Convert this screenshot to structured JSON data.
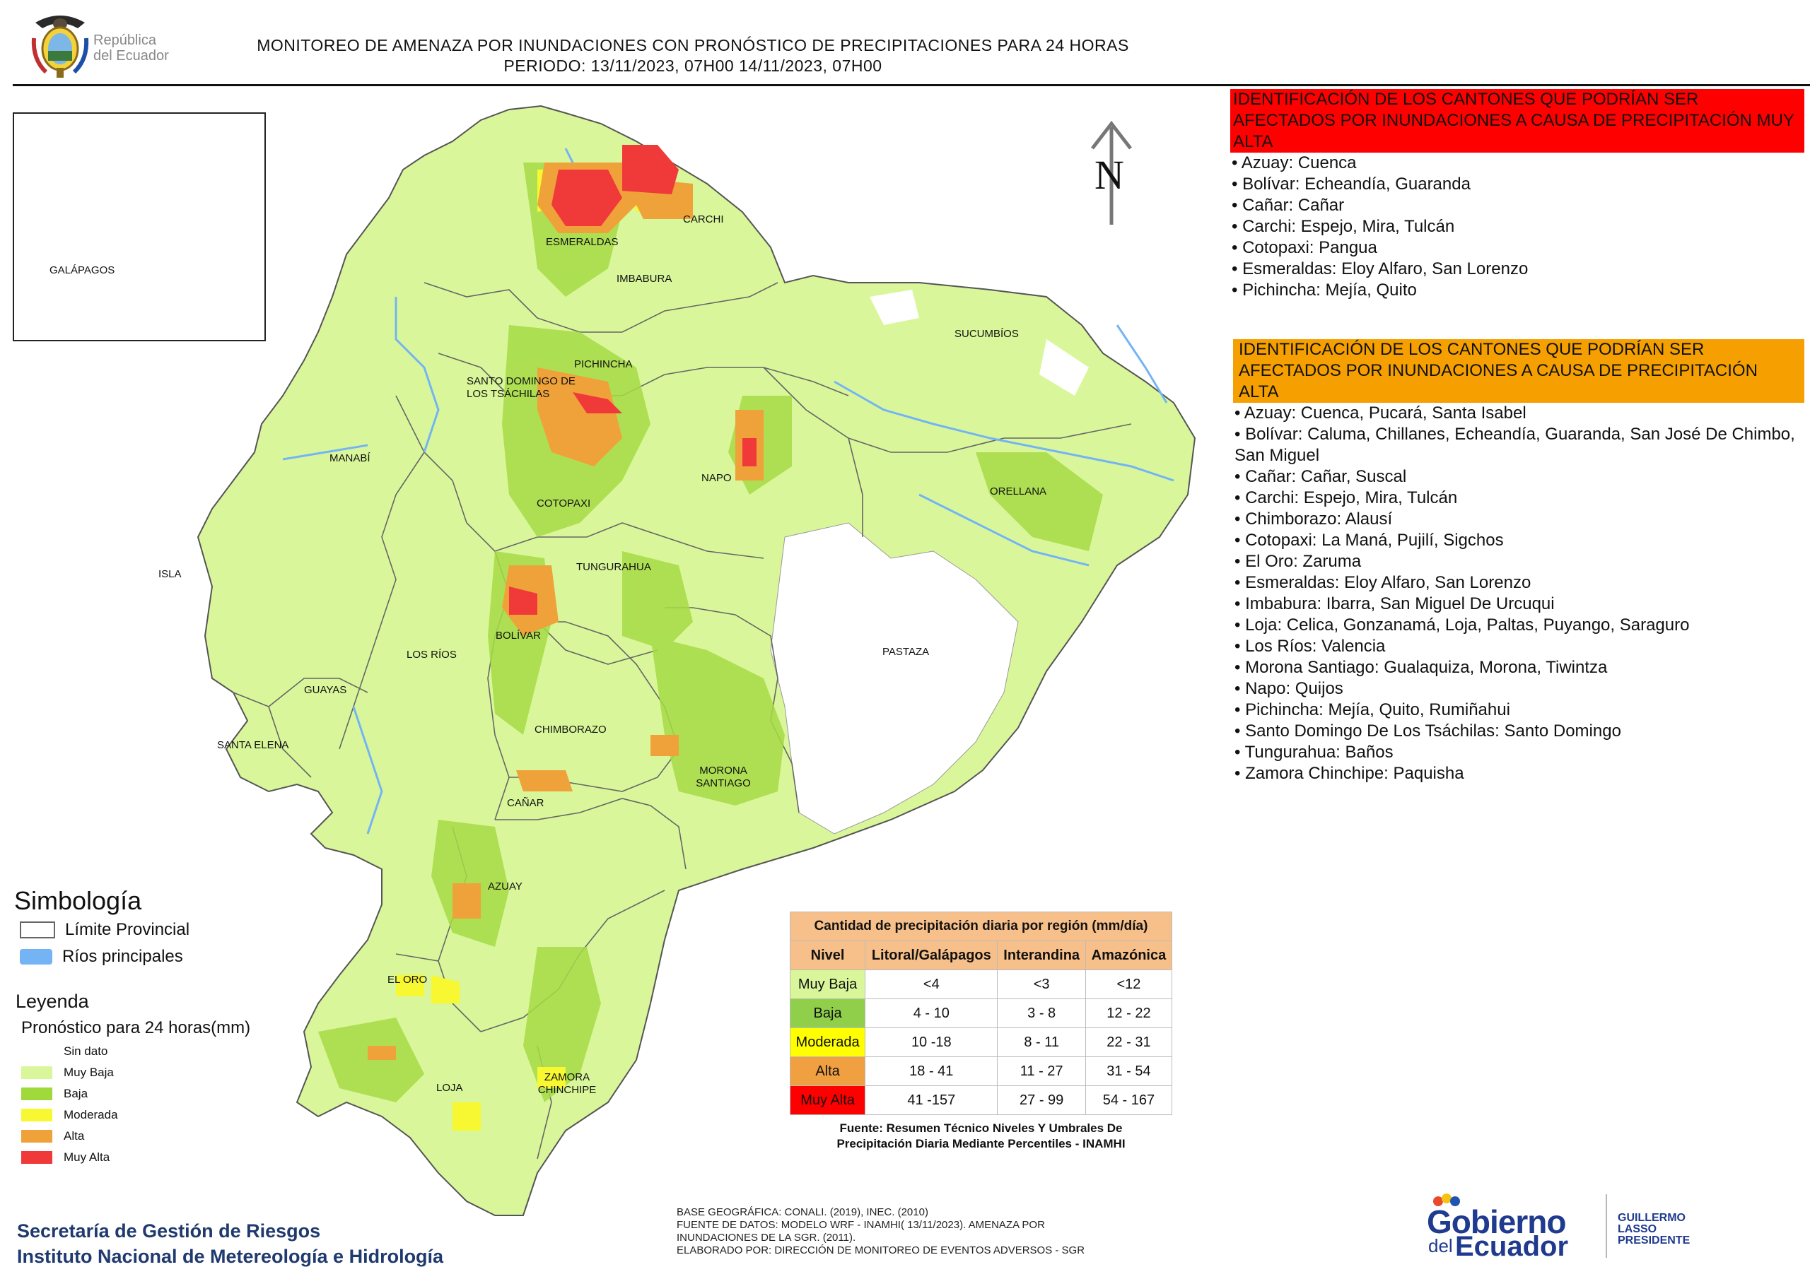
{
  "header": {
    "logo_text": [
      "República",
      "del Ecuador"
    ],
    "title_line1": "MONITOREO DE AMENAZA POR INUNDACIONES  CON PRONÓSTICO DE  PRECIPITACIONES PARA 24 HORAS",
    "title_line2": "PERIODO: 13/11/2023, 07H00 14/11/2023, 07H00"
  },
  "map": {
    "north_label": "N",
    "provinces": [
      "ESMERALDAS",
      "CARCHI",
      "IMBABURA",
      "SUCUMBÍOS",
      "PICHINCHA",
      "SANTO DOMINGO DE LOS TSÁCHILAS",
      "MANABÍ",
      "NAPO",
      "ORELLANA",
      "COTOPAXI",
      "ISLA",
      "TUNGURAHUA",
      "BOLÍVAR",
      "LOS RÍOS",
      "PASTAZA",
      "GUAYAS",
      "CHIMBORAZO",
      "SANTA ELENA",
      "MORONA SANTIAGO",
      "CAÑAR",
      "AZUAY",
      "EL ORO",
      "ZAMORA CHINCHIPE",
      "LOJA"
    ],
    "inset_label": "GALÁPAGOS"
  },
  "muy_alta": {
    "heading": "IDENTIFICACIÓN DE LOS CANTONES QUE PODRÍAN SER AFECTADOS POR INUNDACIONES  A CAUSA DE PRECIPITACIÓN MUY ALTA",
    "items": [
      "• Azuay: Cuenca",
      "• Bolívar: Echeandía, Guaranda",
      "• Cañar: Cañar",
      "• Carchi: Espejo, Mira, Tulcán",
      "• Cotopaxi: Pangua",
      "• Esmeraldas: Eloy Alfaro, San Lorenzo",
      "• Pichincha: Mejía, Quito"
    ]
  },
  "alta": {
    "heading": "IDENTIFICACIÓN DE LOS CANTONES QUE  PODRÍAN SER AFECTADOS POR INUNDACIONES  A CAUSA DE PRECIPITACIÓN ALTA",
    "items": [
      "• Azuay: Cuenca, Pucará, Santa Isabel",
      "• Bolívar: Caluma, Chillanes, Echeandía, Guaranda, San José De Chimbo, San Miguel",
      "• Cañar: Cañar, Suscal",
      "• Carchi: Espejo, Mira, Tulcán",
      "• Chimborazo: Alausí",
      "• Cotopaxi: La Maná, Pujilí, Sigchos",
      "• El Oro: Zaruma",
      "• Esmeraldas: Eloy Alfaro, San Lorenzo",
      "• Imbabura: Ibarra, San Miguel De Urcuqui",
      "• Loja: Celica, Gonzanamá, Loja, Paltas, Puyango, Saraguro",
      "• Los Ríos: Valencia",
      "• Morona Santiago: Gualaquiza, Morona, Tiwintza",
      "• Napo: Quijos",
      "• Pichincha: Mejía, Quito, Rumiñahui",
      "• Santo Domingo De Los Tsáchilas: Santo Domingo",
      "• Tungurahua: Baños",
      "• Zamora Chinchipe: Paquisha"
    ]
  },
  "simbologia": {
    "title": "Simbología",
    "items": [
      {
        "label": "Límite Provincial",
        "color": "#ffffff"
      },
      {
        "label": "Ríos principales",
        "color": "#74b4f4"
      }
    ]
  },
  "leyenda": {
    "title": "Leyenda",
    "subtitle": "Pronóstico para 24 horas(mm)",
    "items": [
      {
        "label": "Sin dato",
        "color": "#ffffff"
      },
      {
        "label": "Muy Baja",
        "color": "#d9f79a"
      },
      {
        "label": "Baja",
        "color": "#9fd93c"
      },
      {
        "label": "Moderada",
        "color": "#f7f732"
      },
      {
        "label": "Alta",
        "color": "#f0a23a"
      },
      {
        "label": "Muy Alta",
        "color": "#f03a3a"
      }
    ]
  },
  "precip_table": {
    "title": "Cantidad de precipitación diaria por región (mm/día)",
    "headers": [
      "Nivel",
      "Litoral/Galápagos",
      "Interandina",
      "Amazónica"
    ],
    "rows": [
      {
        "nivel": "Muy Baja",
        "color": "#d9f79a",
        "litoral": "<4",
        "interandina": "<3",
        "amazonica": "<12"
      },
      {
        "nivel": "Baja",
        "color": "#8fcf4a",
        "litoral": "4 - 10",
        "interandina": "3 - 8",
        "amazonica": "12 - 22"
      },
      {
        "nivel": "Moderada",
        "color": "#ffff00",
        "litoral": "10 -18",
        "interandina": "8 - 11",
        "amazonica": "22 - 31"
      },
      {
        "nivel": "Alta",
        "color": "#f0a040",
        "litoral": "18 - 41",
        "interandina": "11 - 27",
        "amazonica": "31 - 54"
      },
      {
        "nivel": "Muy Alta",
        "color": "#ff0000",
        "litoral": "41 -157",
        "interandina": "27 - 99",
        "amazonica": "54 - 167"
      }
    ],
    "source": "Fuente: Resumen Técnico Niveles Y Umbrales De Precipitación Diaria Mediante Percentiles - INAMHI",
    "header_color": "#f7c08a"
  },
  "footer": {
    "org1": "Secretaría de Gestión de Riesgos",
    "org2": "Instituto Nacional de Metereología e Hidrología",
    "src_lines": [
      "BASE GEOGRÁFICA: CONALI. (2019), INEC. (2010)",
      "FUENTE DE DATOS: MODELO WRF - INAMHI( 13/11/2023).  AMENAZA POR",
      "INUNDACIONES DE LA SGR. (2011).",
      "ELABORADO POR: DIRECCIÓN DE MONITOREO DE EVENTOS ADVERSOS - SGR"
    ],
    "gob_line1": "Gobierno",
    "gob_line2": "del",
    "gob_line3": "Ecuador",
    "president_name": "GUILLERMO LASSO",
    "president_title": "PRESIDENTE"
  }
}
